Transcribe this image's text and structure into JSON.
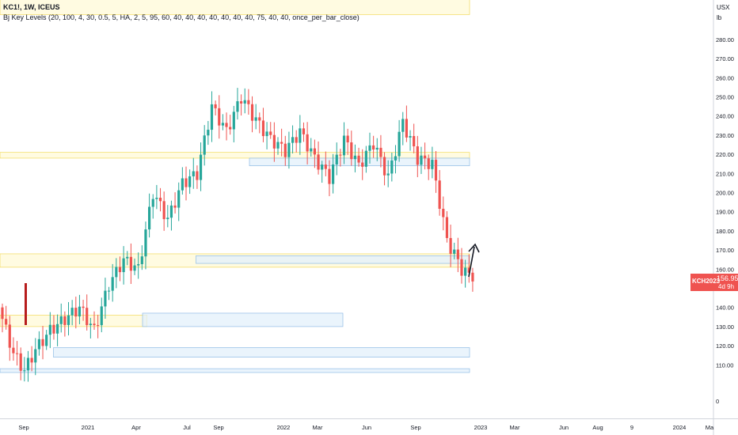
{
  "header": {
    "symbol_line": "KC1!, 1W, ICEUS",
    "indicator_line": "Bj Key Levels (20, 100, 4, 30, 0.5, 5, HA, 2, 5, 95, 60, 40, 40, 40, 40, 40, 40, 40, 75, 40, 40, once_per_bar_close)"
  },
  "price_tag": {
    "symbol": "KCH2023",
    "price": "156.95",
    "countdown": "4d 9h"
  },
  "colors": {
    "up": "#26a69a",
    "down": "#ef5350",
    "zone_yellow": "#fff7c8",
    "zone_blue": "#e3f0fb",
    "arrow": "#131722"
  },
  "chart_data": {
    "type": "candlestick",
    "currency": "USX",
    "unit": "lb",
    "y_ticks": [
      0,
      110,
      120,
      130,
      140,
      150,
      160,
      170,
      180,
      190,
      200,
      210,
      220,
      230,
      240,
      250,
      260,
      270,
      280
    ],
    "y_tick_labels": [
      "0",
      "110.00",
      "120.00",
      "130.00",
      "140.00",
      "150.00",
      "160.00",
      "170.00",
      "180.00",
      "190.00",
      "200.00",
      "210.00",
      "220.00",
      "230.00",
      "240.00",
      "250.00",
      "260.00",
      "270.00",
      "280.00"
    ],
    "x_tick_labels": [
      "Sep",
      "2021",
      "Apr",
      "Jul",
      "Sep",
      "2022",
      "Mar",
      "Jun",
      "Sep",
      "2023",
      "Mar",
      "Jun",
      "Aug",
      "9",
      "2024",
      "Ma"
    ],
    "last_price": 156.95,
    "key_levels": [
      {
        "color": "yellow",
        "from": "2020-08",
        "to": "2022-11",
        "low": 218,
        "high": 221
      },
      {
        "color": "blue",
        "from": "2021-10",
        "to": "2022-11",
        "low": 214,
        "high": 218
      },
      {
        "color": "yellow",
        "from": "2020-08",
        "to": "2022-11",
        "low": 161,
        "high": 168
      },
      {
        "color": "blue",
        "from": "2021-07",
        "to": "2022-11",
        "low": 163,
        "high": 167
      },
      {
        "color": "yellow",
        "from": "2020-08",
        "to": "2021-03",
        "low": 130,
        "high": 136
      },
      {
        "color": "blue",
        "from": "2021-04",
        "to": "2022-02",
        "low": 130,
        "high": 137
      },
      {
        "color": "blue",
        "from": "2020-11",
        "to": "2022-11",
        "low": 114,
        "high": 119
      },
      {
        "color": "blue",
        "from": "2020-08",
        "to": "2022-11",
        "low": 106,
        "high": 108
      },
      {
        "color": "yellow",
        "from": "2020-08",
        "to": "2022-11",
        "low": 293,
        "high": 302
      }
    ]
  }
}
